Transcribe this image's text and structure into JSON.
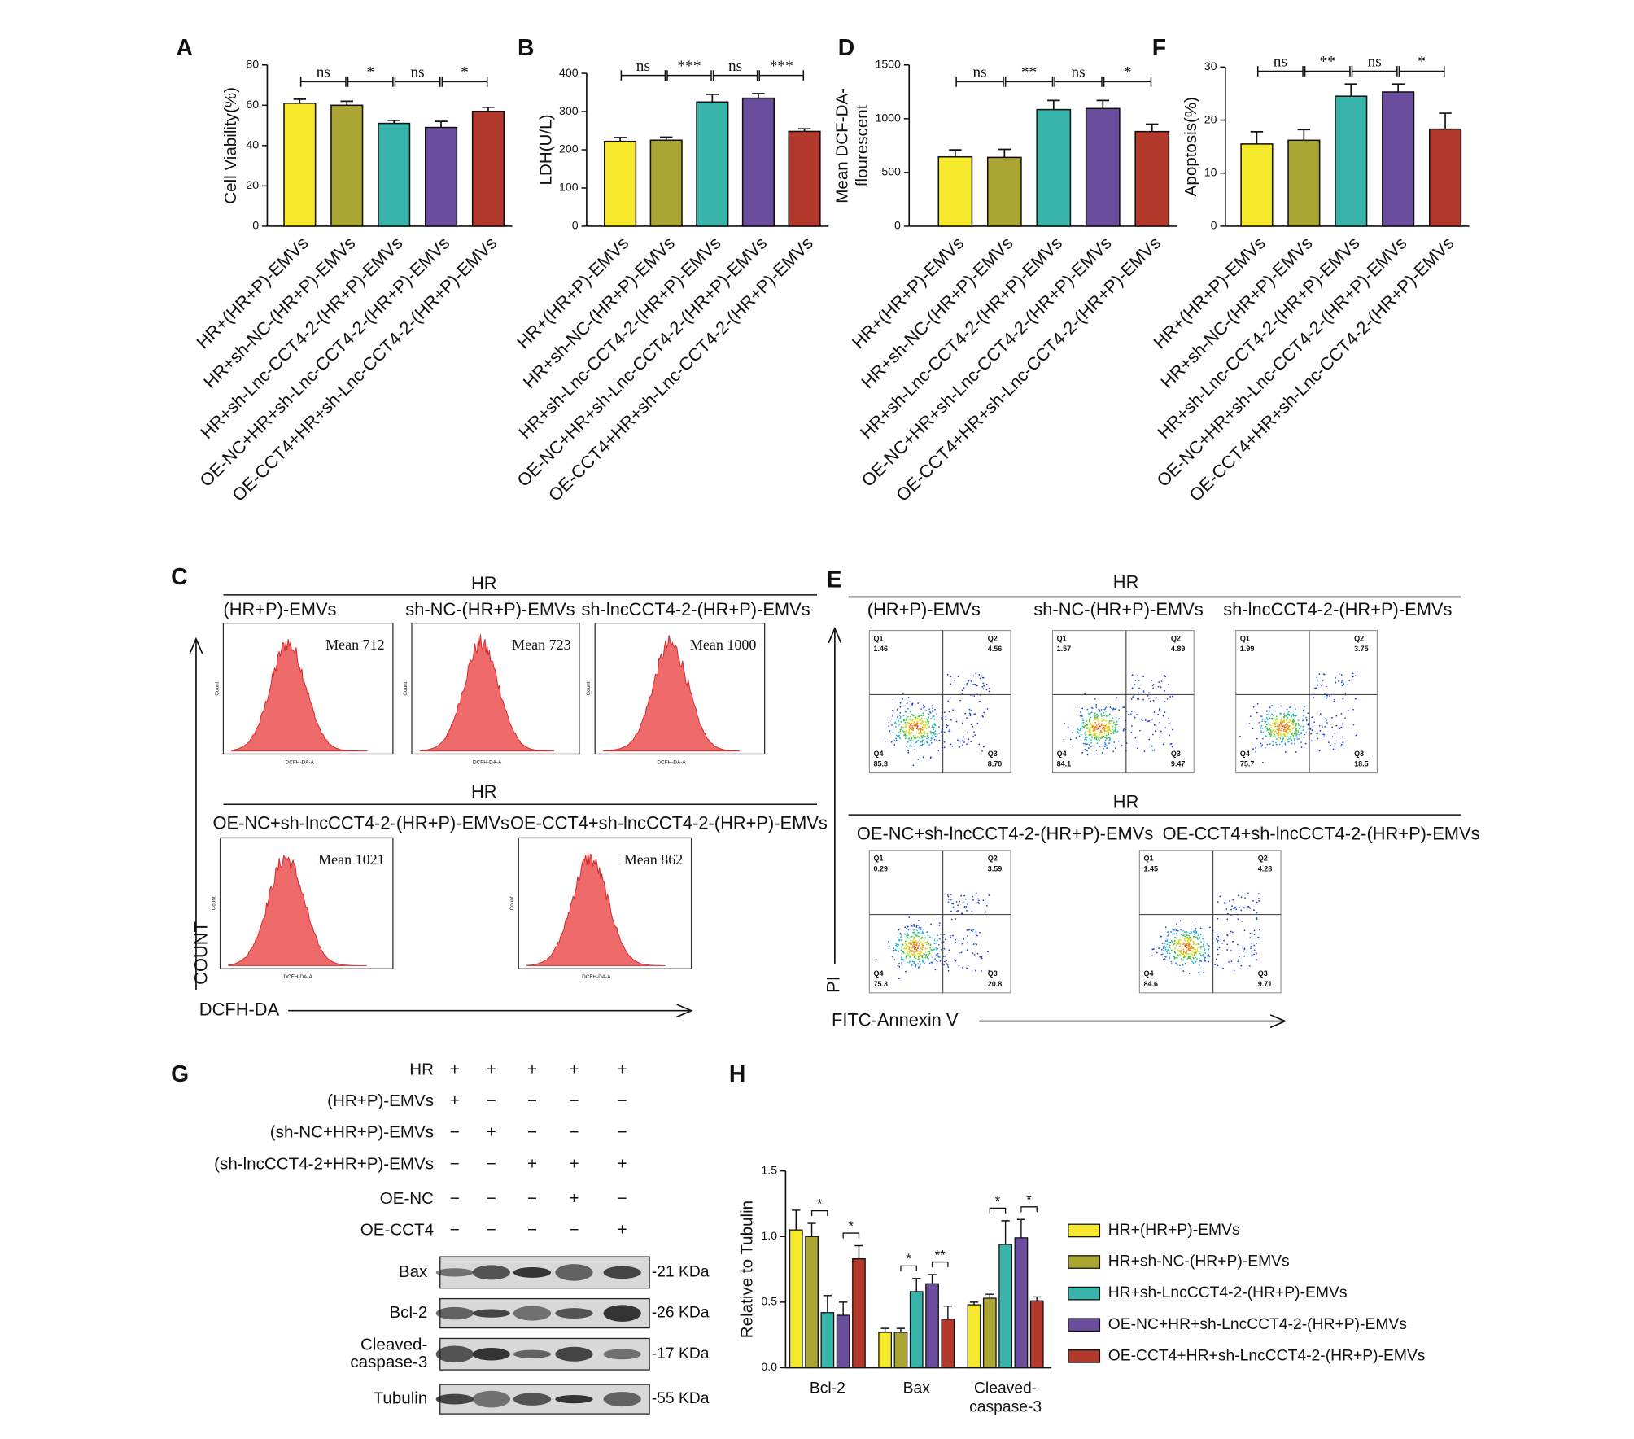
{
  "chart_data": [
    {
      "type": "bar",
      "panel": "A",
      "ylabel": [
        "Cell Viability(%)"
      ],
      "categories": [
        "HR+(HR+P)-EMVs",
        "HR+sh-NC-(HR+P)-EMVs",
        "HR+sh-Lnc-CCT4-2-(HR+P)-EMVs",
        "OE-NC+HR+sh-Lnc-CCT4-2-(HR+P)-EMVs",
        "OE-CCT4+HR+sh-Lnc-CCT4-2-(HR+P)-EMVs"
      ],
      "values": [
        61,
        60,
        51,
        49,
        57
      ],
      "errors": [
        2,
        2,
        1.5,
        3,
        2
      ],
      "colors": [
        "#f6e82a",
        "#aba534",
        "#38b4aa",
        "#6a4d9d",
        "#b2392c"
      ],
      "ylim": [
        0,
        80
      ],
      "yticks": [
        0,
        20,
        40,
        60,
        80
      ],
      "annotations": [
        "ns",
        "*",
        "ns",
        "*"
      ]
    },
    {
      "type": "bar",
      "panel": "B",
      "ylabel": [
        "LDH(U/L)"
      ],
      "categories": [
        "HR+(HR+P)-EMVs",
        "HR+sh-NC-(HR+P)-EMVs",
        "HR+sh-Lnc-CCT4-2-(HR+P)-EMVs",
        "OE-NC+HR+sh-Lnc-CCT4-2-(HR+P)-EMVs",
        "OE-CCT4+HR+sh-Lnc-CCT4-2-(HR+P)-EMVs"
      ],
      "values": [
        222,
        225,
        325,
        335,
        248
      ],
      "errors": [
        10,
        8,
        20,
        12,
        7
      ],
      "colors": [
        "#f6e82a",
        "#aba534",
        "#38b4aa",
        "#6a4d9d",
        "#b2392c"
      ],
      "ylim": [
        0,
        400
      ],
      "yticks": [
        0,
        100,
        200,
        300,
        400
      ],
      "annotations": [
        "ns",
        "***",
        "ns",
        "***"
      ]
    },
    {
      "type": "bar",
      "panel": "D",
      "ylabel": [
        "Mean DCF-DA-",
        "flourescent"
      ],
      "categories": [
        "HR+(HR+P)-EMVs",
        "HR+sh-NC-(HR+P)-EMVs",
        "HR+sh-Lnc-CCT4-2-(HR+P)-EMVs",
        "OE-NC+HR+sh-Lnc-CCT4-2-(HR+P)-EMVs",
        "OE-CCT4+HR+sh-Lnc-CCT4-2-(HR+P)-EMVs"
      ],
      "values": [
        645,
        640,
        1085,
        1095,
        880
      ],
      "errors": [
        65,
        75,
        85,
        75,
        70
      ],
      "colors": [
        "#f6e82a",
        "#aba534",
        "#38b4aa",
        "#6a4d9d",
        "#b2392c"
      ],
      "ylim": [
        0,
        1500
      ],
      "yticks": [
        0,
        500,
        1000,
        1500
      ],
      "annotations": [
        "ns",
        "**",
        "ns",
        "*"
      ]
    },
    {
      "type": "bar",
      "panel": "F",
      "ylabel": [
        "Apoptosis(%)"
      ],
      "categories": [
        "HR+(HR+P)-EMVs",
        "HR+sh-NC-(HR+P)-EMVs",
        "HR+sh-Lnc-CCT4-2-(HR+P)-EMVs",
        "OE-NC+HR+sh-Lnc-CCT4-2-(HR+P)-EMVs",
        "OE-CCT4+HR+sh-Lnc-CCT4-2-(HR+P)-EMVs"
      ],
      "values": [
        15.5,
        16.2,
        24.5,
        25.3,
        18.3
      ],
      "errors": [
        2.3,
        2,
        2.3,
        1.5,
        3
      ],
      "colors": [
        "#f6e82a",
        "#aba534",
        "#38b4aa",
        "#6a4d9d",
        "#b2392c"
      ],
      "ylim": [
        0,
        30
      ],
      "yticks": [
        0,
        10,
        20,
        30
      ],
      "annotations": [
        "ns",
        "**",
        "ns",
        "*"
      ]
    },
    {
      "type": "grouped_bar",
      "panel": "H",
      "ylabel": [
        "Relative to Tubulin"
      ],
      "categories": [
        [
          "Bcl-2"
        ],
        [
          "Bax"
        ],
        [
          "Cleaved-",
          "caspase-3"
        ]
      ],
      "series": [
        {
          "name": "HR+(HR+P)-EMVs",
          "color": "#f6e82a",
          "values": [
            1.05,
            0.27,
            0.48
          ],
          "errors": [
            0.15,
            0.03,
            0.02
          ]
        },
        {
          "name": "HR+sh-NC-(HR+P)-EMVs",
          "color": "#aba534",
          "values": [
            1.0,
            0.27,
            0.53
          ],
          "errors": [
            0.1,
            0.03,
            0.03
          ]
        },
        {
          "name": "HR+sh-LncCCT4-2-(HR+P)-EMVs",
          "color": "#38b4aa",
          "values": [
            0.42,
            0.58,
            0.94
          ],
          "errors": [
            0.13,
            0.1,
            0.18
          ]
        },
        {
          "name": "OE-NC+HR+sh-LncCCT4-2-(HR+P)-EMVs",
          "color": "#6a4d9d",
          "values": [
            0.4,
            0.64,
            0.99
          ],
          "errors": [
            0.1,
            0.07,
            0.14
          ]
        },
        {
          "name": "OE-CCT4+HR+sh-LncCCT4-2-(HR+P)-EMVs",
          "color": "#b2392c",
          "values": [
            0.83,
            0.37,
            0.51
          ],
          "errors": [
            0.1,
            0.1,
            0.03
          ]
        }
      ],
      "ylim": [
        0,
        1.5
      ],
      "yticks": [
        {
          "value": 0,
          "label": "0.0"
        },
        {
          "value": 0.5,
          "label": "0.5"
        },
        {
          "value": 1,
          "label": "1.0"
        },
        {
          "value": 1.5,
          "label": "1.5"
        }
      ],
      "annotations": [
        [
          "*",
          "*"
        ],
        [
          "*",
          "**"
        ],
        [
          "*",
          "*"
        ]
      ]
    }
  ],
  "flow_c": {
    "panel": "C",
    "x_label": "DCFH-DA",
    "y_label": "COUNT",
    "count_axis": "Count",
    "x_axis": "DCFH-DA-A",
    "rows": [
      {
        "group": "HR",
        "samples": [
          {
            "title": "(HR+P)-EMVs",
            "mean": "Mean 712"
          },
          {
            "title": "sh-NC-(HR+P)-EMVs",
            "mean": "Mean 723"
          },
          {
            "title": "sh-lncCCT4-2-(HR+P)-EMVs",
            "mean": "Mean 1000"
          }
        ]
      },
      {
        "group": "HR",
        "samples": [
          {
            "title": "OE-NC+sh-lncCCT4-2-(HR+P)-EMVs",
            "mean": "Mean 1021"
          },
          {
            "title": "OE-CCT4+sh-lncCCT4-2-(HR+P)-EMVs",
            "mean": "Mean 862"
          }
        ]
      }
    ]
  },
  "flow_e": {
    "panel": "E",
    "x_label": "FITC-Annexin V",
    "y_label": "PI",
    "rows": [
      {
        "group": "HR",
        "samples": [
          {
            "title": "(HR+P)-EMVs",
            "quadrants": [
              {
                "name": "Q1",
                "value": "1.46"
              },
              {
                "name": "Q2",
                "value": "4.56"
              },
              {
                "name": "Q3",
                "value": "8.70"
              },
              {
                "name": "Q4",
                "value": "85.3"
              }
            ]
          },
          {
            "title": "sh-NC-(HR+P)-EMVs",
            "quadrants": [
              {
                "name": "Q1",
                "value": "1.57"
              },
              {
                "name": "Q2",
                "value": "4.89"
              },
              {
                "name": "Q3",
                "value": "9.47"
              },
              {
                "name": "Q4",
                "value": "84.1"
              }
            ]
          },
          {
            "title": "sh-lncCCT4-2-(HR+P)-EMVs",
            "quadrants": [
              {
                "name": "Q1",
                "value": "1.99"
              },
              {
                "name": "Q2",
                "value": "3.75"
              },
              {
                "name": "Q3",
                "value": "18.5"
              },
              {
                "name": "Q4",
                "value": "75.7"
              }
            ]
          }
        ]
      },
      {
        "group": "HR",
        "samples": [
          {
            "title": "OE-NC+sh-lncCCT4-2-(HR+P)-EMVs",
            "quadrants": [
              {
                "name": "Q1",
                "value": "0.29"
              },
              {
                "name": "Q2",
                "value": "3.59"
              },
              {
                "name": "Q3",
                "value": "20.8"
              },
              {
                "name": "Q4",
                "value": "75.3"
              }
            ]
          },
          {
            "title": "OE-CCT4+sh-lncCCT4-2-(HR+P)-EMVs",
            "quadrants": [
              {
                "name": "Q1",
                "value": "1.45"
              },
              {
                "name": "Q2",
                "value": "4.28"
              },
              {
                "name": "Q3",
                "value": "9.71"
              },
              {
                "name": "Q4",
                "value": "84.6"
              }
            ]
          }
        ]
      }
    ]
  },
  "western_g": {
    "panel": "G",
    "conditions": [
      {
        "name": "HR",
        "signs": [
          "+",
          "+",
          "+",
          "+",
          "+"
        ]
      },
      {
        "name": "(HR+P)-EMVs",
        "signs": [
          "+",
          "−",
          "−",
          "−",
          "−"
        ]
      },
      {
        "name": "(sh-NC+HR+P)-EMVs",
        "signs": [
          "−",
          "+",
          "−",
          "−",
          "−"
        ]
      },
      {
        "name": "(sh-lncCCT4-2+HR+P)-EMVs",
        "signs": [
          "−",
          "−",
          "+",
          "+",
          "+"
        ]
      },
      {
        "name": "OE-NC",
        "signs": [
          "−",
          "−",
          "−",
          "+",
          "−"
        ]
      },
      {
        "name": "OE-CCT4",
        "signs": [
          "−",
          "−",
          "−",
          "−",
          "+"
        ]
      }
    ],
    "blots": [
      {
        "name": [
          "Bax"
        ],
        "size": "-21 KDa"
      },
      {
        "name": [
          "Bcl-2"
        ],
        "size": "-26 KDa"
      },
      {
        "name": [
          "Cleaved-",
          "caspase-3"
        ],
        "size": "-17 KDa"
      },
      {
        "name": [
          "Tubulin"
        ],
        "size": "-55 KDa"
      }
    ]
  }
}
